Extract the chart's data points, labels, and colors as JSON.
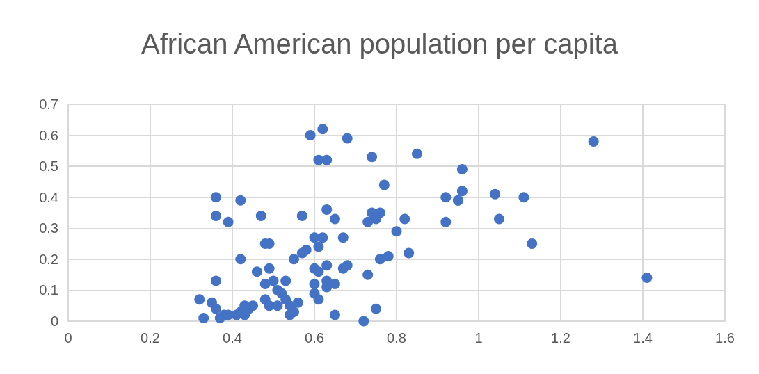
{
  "chart_data": {
    "type": "scatter",
    "title": "African American population per capita",
    "x": [
      0.59,
      0.62,
      0.68,
      0.61,
      0.63,
      0.74,
      0.85,
      1.28,
      0.77,
      0.96,
      0.96,
      1.04,
      1.11,
      0.92,
      0.95,
      0.95,
      0.92,
      1.05,
      1.13,
      1.41,
      0.36,
      0.42,
      0.36,
      0.39,
      0.47,
      0.57,
      0.63,
      0.65,
      0.74,
      0.76,
      0.73,
      0.75,
      0.82,
      0.8,
      0.67,
      0.6,
      0.62,
      0.61,
      0.58,
      0.57,
      0.55,
      0.42,
      0.48,
      0.49,
      0.76,
      0.78,
      0.83,
      0.6,
      0.61,
      0.63,
      0.68,
      0.67,
      0.49,
      0.46,
      0.53,
      0.48,
      0.5,
      0.51,
      0.6,
      0.6,
      0.63,
      0.63,
      0.65,
      0.61,
      0.73,
      0.36,
      0.32,
      0.35,
      0.36,
      0.33,
      0.37,
      0.38,
      0.41,
      0.43,
      0.44,
      0.45,
      0.48,
      0.49,
      0.51,
      0.53,
      0.54,
      0.54,
      0.55,
      0.56,
      0.52,
      0.65,
      0.72,
      0.75,
      0.42,
      0.43,
      0.39
    ],
    "series": [
      {
        "color": "#4472c4",
        "values": [
          0.6,
          0.62,
          0.59,
          0.52,
          0.52,
          0.53,
          0.54,
          0.58,
          0.44,
          0.49,
          0.42,
          0.41,
          0.4,
          0.4,
          0.39,
          0.39,
          0.32,
          0.33,
          0.25,
          0.14,
          0.4,
          0.39,
          0.34,
          0.32,
          0.34,
          0.34,
          0.36,
          0.33,
          0.35,
          0.35,
          0.32,
          0.33,
          0.33,
          0.29,
          0.27,
          0.27,
          0.27,
          0.24,
          0.23,
          0.22,
          0.2,
          0.2,
          0.25,
          0.25,
          0.2,
          0.21,
          0.22,
          0.17,
          0.16,
          0.18,
          0.18,
          0.17,
          0.17,
          0.16,
          0.13,
          0.12,
          0.13,
          0.1,
          0.12,
          0.09,
          0.13,
          0.11,
          0.12,
          0.07,
          0.15,
          0.13,
          0.07,
          0.06,
          0.04,
          0.01,
          0.01,
          0.02,
          0.02,
          0.02,
          0.04,
          0.05,
          0.07,
          0.05,
          0.05,
          0.07,
          0.05,
          0.02,
          0.03,
          0.06,
          0.09,
          0.02,
          0.0,
          0.04,
          0.03,
          0.05,
          0.02
        ]
      }
    ],
    "xlim": [
      0,
      1.6
    ],
    "xticks": [
      0,
      0.2,
      0.4,
      0.6,
      0.8,
      1,
      1.2,
      1.4,
      1.6
    ],
    "ylim": [
      0,
      0.7
    ],
    "yticks": [
      0,
      0.1,
      0.2,
      0.3,
      0.4,
      0.5,
      0.6,
      0.7
    ],
    "grid": true,
    "marker": "circle"
  }
}
